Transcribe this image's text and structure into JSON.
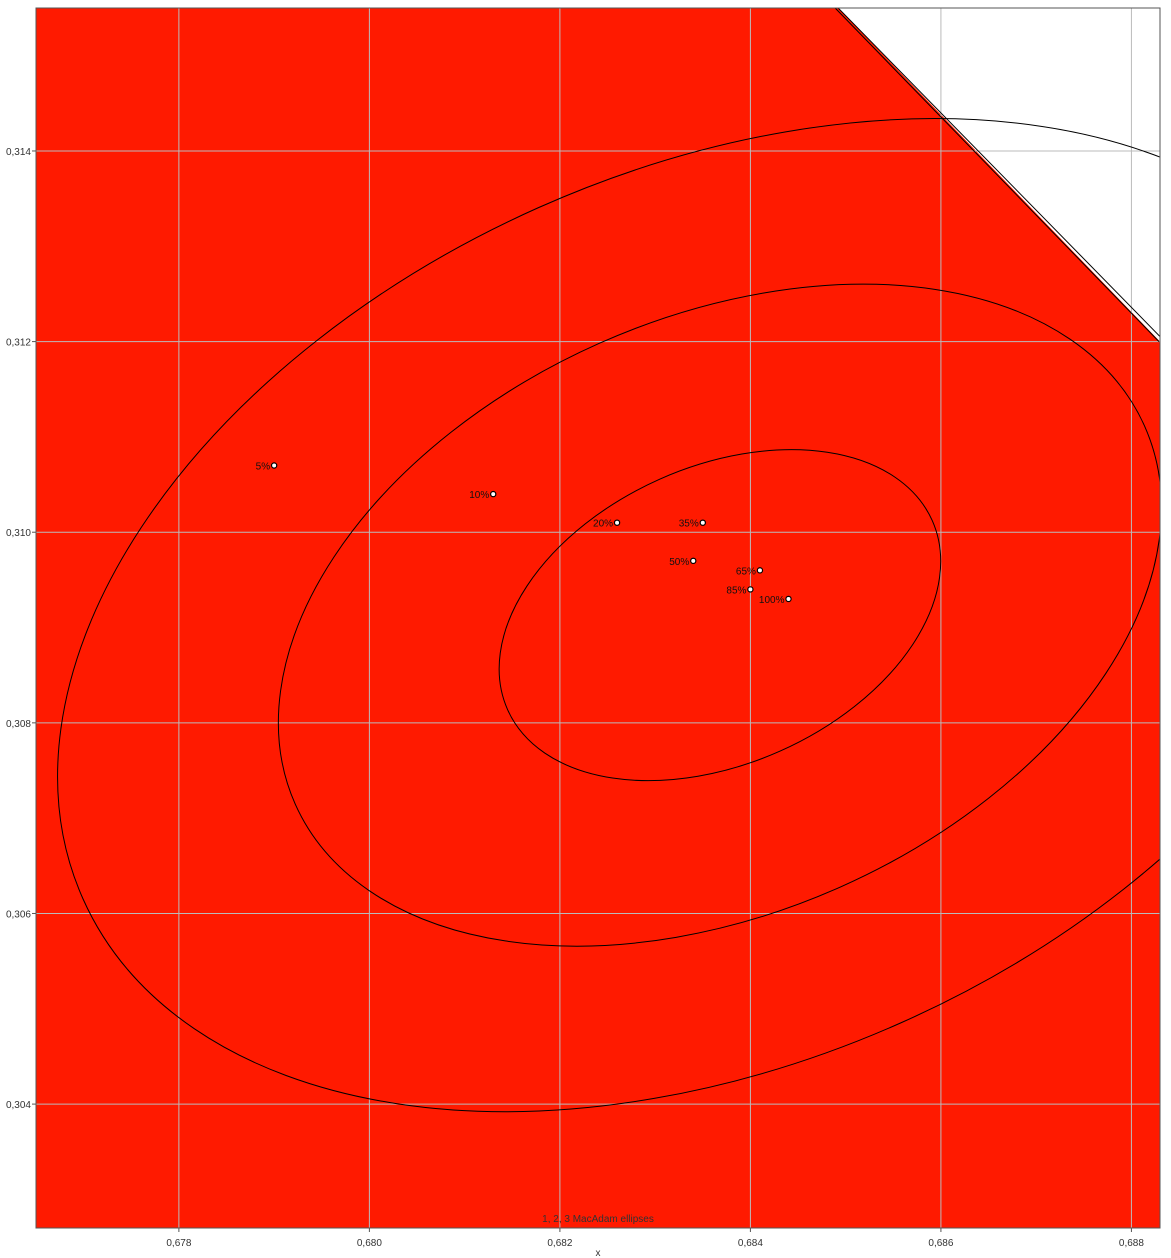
{
  "chart_data": {
    "type": "scatter",
    "title": "",
    "xlabel": "x",
    "ylabel": "",
    "xlim": [
      0.6765,
      0.6883
    ],
    "ylim": [
      0.3027,
      0.3155
    ],
    "x_ticks": [
      0.678,
      0.68,
      0.682,
      0.684,
      0.686,
      0.688
    ],
    "x_tick_labels": [
      "0,678",
      "0,680",
      "0,682",
      "0,684",
      "0,686",
      "0,688"
    ],
    "y_ticks": [
      0.304,
      0.306,
      0.308,
      0.31,
      0.312,
      0.314
    ],
    "y_tick_labels": [
      "0,304",
      "0,306",
      "0,308",
      "0,310",
      "0,312",
      "0,314"
    ],
    "grid": true,
    "colors": {
      "background_fill": "#ff1a00",
      "outside_gamut": "#ffffff",
      "grid": "#bbbbbb",
      "curves": "#000000"
    },
    "points": [
      {
        "label": "5%",
        "x": 0.679,
        "y": 0.3107
      },
      {
        "label": "10%",
        "x": 0.6813,
        "y": 0.3104
      },
      {
        "label": "20%",
        "x": 0.6826,
        "y": 0.3101
      },
      {
        "label": "35%",
        "x": 0.6835,
        "y": 0.3101
      },
      {
        "label": "50%",
        "x": 0.6834,
        "y": 0.3097
      },
      {
        "label": "65%",
        "x": 0.6841,
        "y": 0.3096
      },
      {
        "label": "85%",
        "x": 0.684,
        "y": 0.3094
      },
      {
        "label": "100%",
        "x": 0.6844,
        "y": 0.3093
      }
    ],
    "ellipses": {
      "center": {
        "x": 0.68368,
        "y": 0.30913
      },
      "semi_major": 0.00244,
      "semi_minor": 0.00156,
      "angle_deg": 24,
      "scales": [
        1,
        2,
        3
      ]
    },
    "gamut_boundary": [
      [
        0.6849,
        0.3155
      ],
      [
        0.6883,
        0.312
      ]
    ],
    "annotation": "1, 2, 3  MacAdam ellipses"
  }
}
